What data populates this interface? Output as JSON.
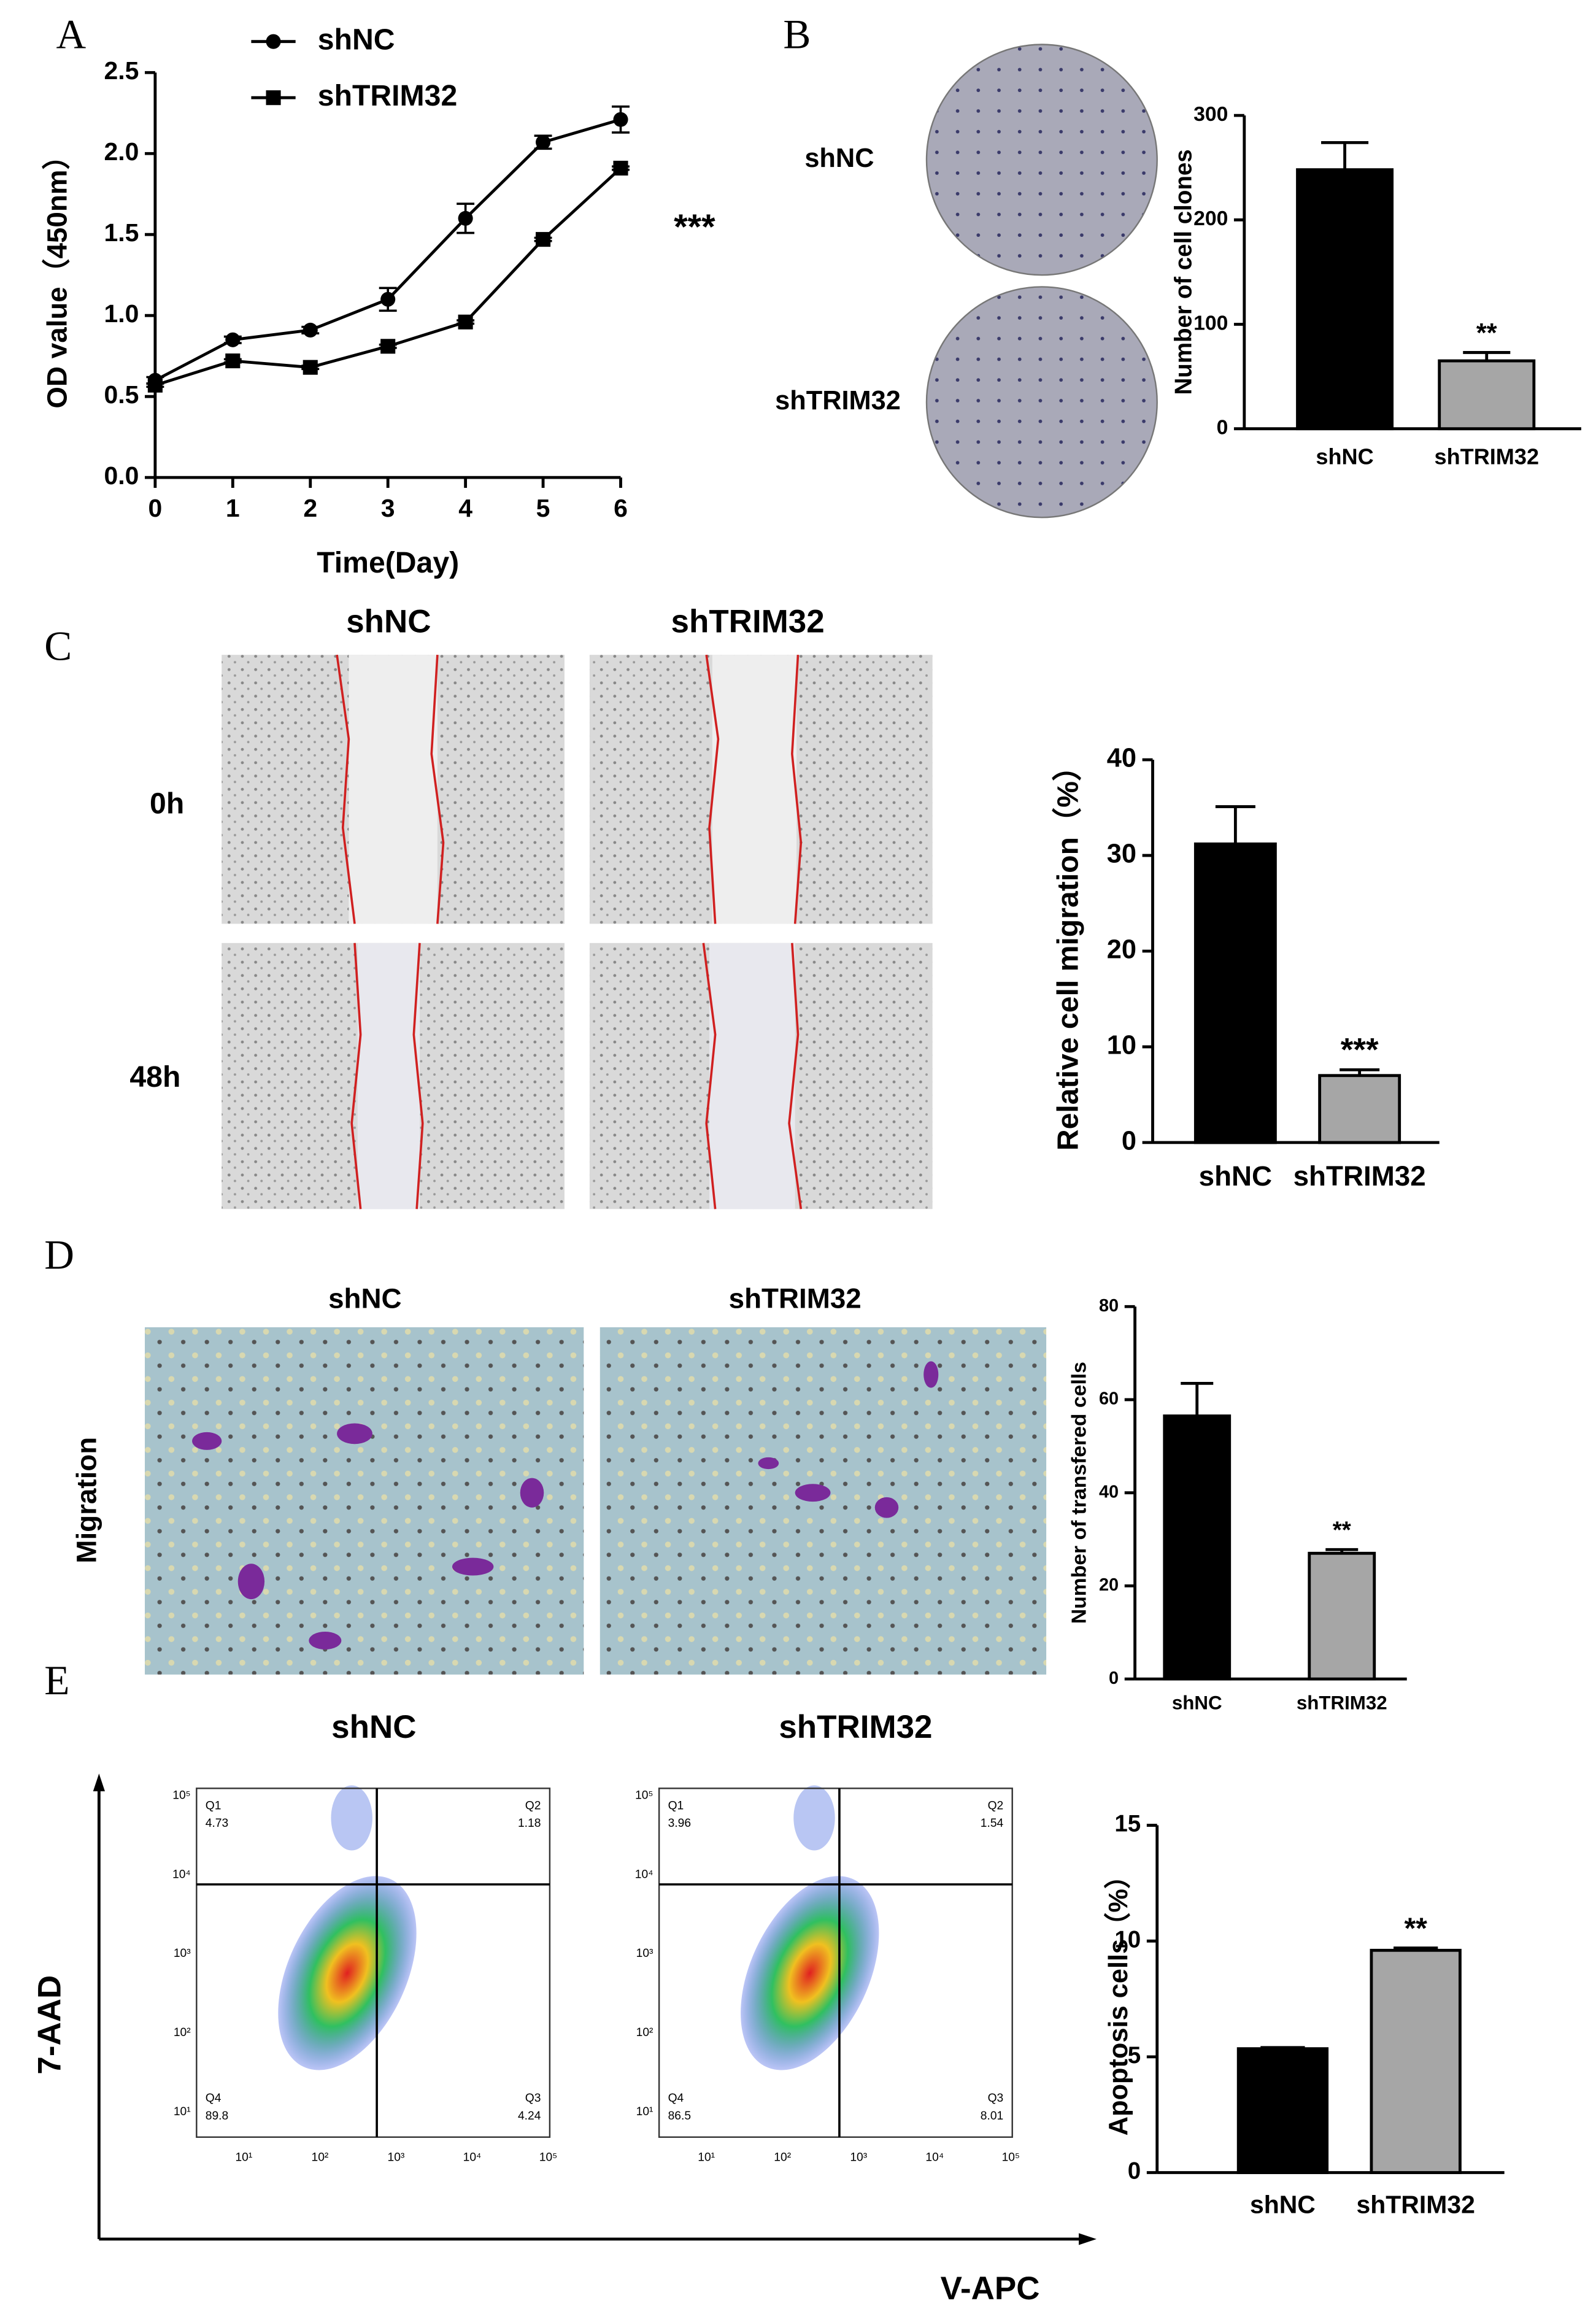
{
  "chart_data": [
    {
      "type": "line",
      "x": [
        0,
        1,
        2,
        3,
        4,
        5,
        6
      ],
      "xlabel": "Time(Day)",
      "ylabel": "OD value（450nm）",
      "annotation": "***",
      "series": [
        {
          "name": "shNC",
          "color": "#000000",
          "marker": "circle",
          "values": [
            0.6,
            0.85,
            0.91,
            1.1,
            1.6,
            2.07,
            2.21
          ],
          "errors": [
            0.02,
            0.02,
            0.02,
            0.07,
            0.09,
            0.04,
            0.08
          ]
        },
        {
          "name": "shTRIM32",
          "color": "#000000",
          "marker": "square",
          "values": [
            0.57,
            0.72,
            0.68,
            0.81,
            0.96,
            1.47,
            1.91
          ],
          "errors": [
            0.01,
            0.01,
            0.01,
            0.01,
            0.01,
            0.01,
            0.01
          ]
        }
      ],
      "xlim": [
        0,
        6
      ],
      "ylim": [
        0,
        2.5
      ],
      "xticks": [
        0,
        1,
        2,
        3,
        4,
        5,
        6
      ],
      "yticks": [
        {
          "value": 0,
          "label": "0.0"
        },
        0.5,
        {
          "value": 1,
          "label": "1.0"
        },
        1.5,
        {
          "value": 2,
          "label": "2.0"
        },
        2.5
      ]
    },
    {
      "type": "bar",
      "categories": [
        "shNC",
        "shTRIM32"
      ],
      "values": [
        248,
        65
      ],
      "errors": [
        26,
        8
      ],
      "colors": [
        "#000000",
        "#a6a6a6"
      ],
      "ylabel": "Number of cell clones",
      "annotation": "**",
      "ylim": [
        0,
        300
      ],
      "yticks": [
        0,
        100,
        200,
        300
      ]
    },
    {
      "type": "bar",
      "categories": [
        "shNC",
        "shTRIM32"
      ],
      "values": [
        31.2,
        7
      ],
      "errors": [
        3.9,
        0.6
      ],
      "colors": [
        "#000000",
        "#a6a6a6"
      ],
      "ylabel": "Relative cell migration（%）",
      "annotation": "***",
      "ylim": [
        0,
        40
      ],
      "yticks": [
        0,
        10,
        20,
        30,
        40
      ]
    },
    {
      "type": "bar",
      "categories": [
        "shNC",
        "shTRIM32"
      ],
      "values": [
        56.5,
        27
      ],
      "errors": [
        7,
        0.8
      ],
      "colors": [
        "#000000",
        "#a6a6a6"
      ],
      "ylabel": "Number of transfered cells",
      "annotation": "**",
      "ylim": [
        0,
        80
      ],
      "yticks": [
        0,
        20,
        40,
        60,
        80
      ]
    },
    {
      "type": "bar",
      "categories": [
        "shNC",
        "shTRIM32"
      ],
      "values": [
        5.35,
        9.6
      ],
      "errors": [
        0.05,
        0.1
      ],
      "colors": [
        "#000000",
        "#a6a6a6"
      ],
      "ylabel": "Apoptosis cells（%）",
      "annotation": "**",
      "ylim": [
        0,
        15
      ],
      "yticks": [
        0,
        5,
        10,
        15
      ]
    }
  ],
  "figure": {
    "panel_labels": [
      "A",
      "B",
      "C",
      "D",
      "E"
    ],
    "b_images": {
      "rows": [
        "shNC",
        "shTRIM32"
      ]
    },
    "c_images": {
      "columns": [
        "shNC",
        "shTRIM32"
      ],
      "rows": [
        "0h",
        "48h"
      ]
    },
    "d_images": {
      "columns": [
        "shNC",
        "shTRIM32"
      ],
      "row": "Migration"
    },
    "e_flow": {
      "columns": [
        "shNC",
        "shTRIM32"
      ],
      "y_label": "7-AAD",
      "x_label": "V-APC",
      "axis_ticks": [
        "10¹",
        "10²",
        "10³",
        "10⁴",
        "10⁵"
      ],
      "plots": [
        {
          "quadrants": [
            [
              "Q1",
              4.73
            ],
            [
              "Q2",
              1.18
            ],
            [
              "Q3",
              4.24
            ],
            [
              "Q4",
              89.8
            ]
          ]
        },
        {
          "quadrants": [
            [
              "Q1",
              3.96
            ],
            [
              "Q2",
              1.54
            ],
            [
              "Q3",
              8.01
            ],
            [
              "Q4",
              86.5
            ]
          ]
        }
      ]
    }
  }
}
